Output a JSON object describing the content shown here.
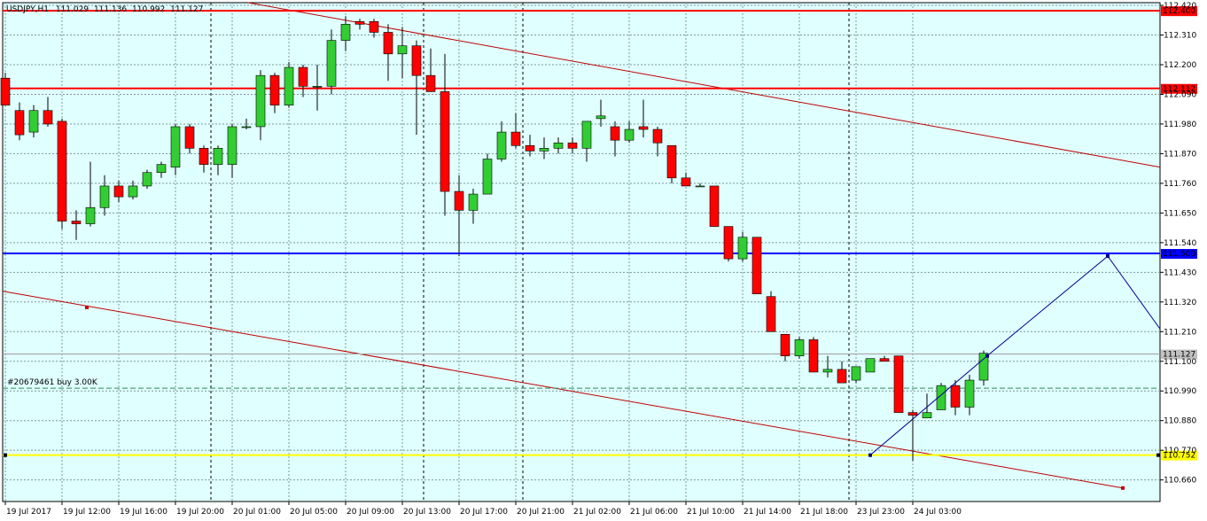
{
  "header": {
    "symbol": "USDJPY,H1",
    "open": "111.029",
    "high": "111.136",
    "low": "110.992",
    "close": "111.127"
  },
  "colors": {
    "background": "#E0FFFF",
    "grid": "#7A9A9A",
    "bull": "#32CD32",
    "bear": "#FF0000",
    "red_line": "#FF0000",
    "blue_line": "#0000FF",
    "yellow_line": "#FFFF00",
    "path_line": "#00008B",
    "trend_line": "#C00000"
  },
  "chart_data": {
    "type": "candlestick",
    "symbol": "USDJPY",
    "timeframe": "H1",
    "ylim": [
      110.58,
      112.43
    ],
    "y_ticks": [
      "112.420",
      "112.310",
      "112.200",
      "112.090",
      "111.980",
      "111.870",
      "111.760",
      "111.650",
      "111.540",
      "111.430",
      "111.320",
      "111.210",
      "111.100",
      "110.990",
      "110.880",
      "110.770",
      "110.660"
    ],
    "x_labels": [
      {
        "index": 0,
        "label": "19 Jul 2017"
      },
      {
        "index": 4,
        "label": "19 Jul 12:00"
      },
      {
        "index": 8,
        "label": "19 Jul 16:00"
      },
      {
        "index": 12,
        "label": "19 Jul 20:00"
      },
      {
        "index": 16,
        "label": "20 Jul 01:00"
      },
      {
        "index": 20,
        "label": "20 Jul 05:00"
      },
      {
        "index": 24,
        "label": "20 Jul 09:00"
      },
      {
        "index": 28,
        "label": "20 Jul 13:00"
      },
      {
        "index": 32,
        "label": "20 Jul 17:00"
      },
      {
        "index": 36,
        "label": "20 Jul 21:00"
      },
      {
        "index": 40,
        "label": "21 Jul 02:00"
      },
      {
        "index": 44,
        "label": "21 Jul 06:00"
      },
      {
        "index": 48,
        "label": "21 Jul 10:00"
      },
      {
        "index": 52,
        "label": "21 Jul 14:00"
      },
      {
        "index": 56,
        "label": "21 Jul 18:00"
      },
      {
        "index": 60,
        "label": "23 Jul 23:00"
      },
      {
        "index": 64,
        "label": "24 Jul 03:00"
      }
    ],
    "candles": [
      {
        "o": 112.15,
        "h": 112.17,
        "l": 112.05,
        "c": 112.05
      },
      {
        "o": 112.03,
        "h": 112.06,
        "l": 111.92,
        "c": 111.94
      },
      {
        "o": 111.95,
        "h": 112.05,
        "l": 111.93,
        "c": 112.03
      },
      {
        "o": 112.03,
        "h": 112.08,
        "l": 111.97,
        "c": 111.98
      },
      {
        "o": 111.99,
        "h": 112.0,
        "l": 111.59,
        "c": 111.62
      },
      {
        "o": 111.62,
        "h": 111.66,
        "l": 111.55,
        "c": 111.61
      },
      {
        "o": 111.61,
        "h": 111.84,
        "l": 111.6,
        "c": 111.67
      },
      {
        "o": 111.67,
        "h": 111.79,
        "l": 111.64,
        "c": 111.75
      },
      {
        "o": 111.75,
        "h": 111.77,
        "l": 111.69,
        "c": 111.71
      },
      {
        "o": 111.71,
        "h": 111.77,
        "l": 111.7,
        "c": 111.75
      },
      {
        "o": 111.75,
        "h": 111.81,
        "l": 111.74,
        "c": 111.8
      },
      {
        "o": 111.8,
        "h": 111.84,
        "l": 111.78,
        "c": 111.83
      },
      {
        "o": 111.82,
        "h": 111.98,
        "l": 111.79,
        "c": 111.97
      },
      {
        "o": 111.97,
        "h": 111.98,
        "l": 111.87,
        "c": 111.89
      },
      {
        "o": 111.89,
        "h": 111.9,
        "l": 111.8,
        "c": 111.83
      },
      {
        "o": 111.83,
        "h": 111.9,
        "l": 111.79,
        "c": 111.89
      },
      {
        "o": 111.83,
        "h": 111.98,
        "l": 111.78,
        "c": 111.97
      },
      {
        "o": 111.97,
        "h": 112.0,
        "l": 111.96,
        "c": 111.97
      },
      {
        "o": 111.97,
        "h": 112.18,
        "l": 111.92,
        "c": 112.16
      },
      {
        "o": 112.16,
        "h": 112.17,
        "l": 112.02,
        "c": 112.05
      },
      {
        "o": 112.05,
        "h": 112.21,
        "l": 112.04,
        "c": 112.19
      },
      {
        "o": 112.19,
        "h": 112.2,
        "l": 112.08,
        "c": 112.12
      },
      {
        "o": 112.12,
        "h": 112.2,
        "l": 112.03,
        "c": 112.12
      },
      {
        "o": 112.12,
        "h": 112.33,
        "l": 112.09,
        "c": 112.29
      },
      {
        "o": 112.29,
        "h": 112.38,
        "l": 112.25,
        "c": 112.35
      },
      {
        "o": 112.36,
        "h": 112.37,
        "l": 112.33,
        "c": 112.35
      },
      {
        "o": 112.36,
        "h": 112.37,
        "l": 112.3,
        "c": 112.32
      },
      {
        "o": 112.32,
        "h": 112.35,
        "l": 112.14,
        "c": 112.24
      },
      {
        "o": 112.24,
        "h": 112.34,
        "l": 112.15,
        "c": 112.27
      },
      {
        "o": 112.27,
        "h": 112.29,
        "l": 111.94,
        "c": 112.16
      },
      {
        "o": 112.16,
        "h": 112.26,
        "l": 112.1,
        "c": 112.1
      },
      {
        "o": 112.1,
        "h": 112.24,
        "l": 111.64,
        "c": 111.73
      },
      {
        "o": 111.73,
        "h": 111.79,
        "l": 111.49,
        "c": 111.66
      },
      {
        "o": 111.66,
        "h": 111.74,
        "l": 111.61,
        "c": 111.72
      },
      {
        "o": 111.72,
        "h": 111.87,
        "l": 111.72,
        "c": 111.85
      },
      {
        "o": 111.85,
        "h": 111.99,
        "l": 111.84,
        "c": 111.95
      },
      {
        "o": 111.95,
        "h": 112.02,
        "l": 111.89,
        "c": 111.9
      },
      {
        "o": 111.9,
        "h": 111.94,
        "l": 111.86,
        "c": 111.88
      },
      {
        "o": 111.88,
        "h": 111.93,
        "l": 111.85,
        "c": 111.89
      },
      {
        "o": 111.89,
        "h": 111.93,
        "l": 111.87,
        "c": 111.91
      },
      {
        "o": 111.91,
        "h": 111.93,
        "l": 111.87,
        "c": 111.89
      },
      {
        "o": 111.89,
        "h": 111.99,
        "l": 111.84,
        "c": 111.99
      },
      {
        "o": 112.0,
        "h": 112.07,
        "l": 111.97,
        "c": 112.01
      },
      {
        "o": 111.97,
        "h": 111.99,
        "l": 111.86,
        "c": 111.92
      },
      {
        "o": 111.92,
        "h": 111.99,
        "l": 111.91,
        "c": 111.96
      },
      {
        "o": 111.97,
        "h": 112.07,
        "l": 111.93,
        "c": 111.96
      },
      {
        "o": 111.96,
        "h": 111.97,
        "l": 111.86,
        "c": 111.91
      },
      {
        "o": 111.9,
        "h": 111.9,
        "l": 111.76,
        "c": 111.78
      },
      {
        "o": 111.78,
        "h": 111.8,
        "l": 111.75,
        "c": 111.75
      },
      {
        "o": 111.75,
        "h": 111.76,
        "l": 111.75,
        "c": 111.75
      },
      {
        "o": 111.75,
        "h": 111.75,
        "l": 111.6,
        "c": 111.6
      },
      {
        "o": 111.6,
        "h": 111.6,
        "l": 111.47,
        "c": 111.48
      },
      {
        "o": 111.48,
        "h": 111.58,
        "l": 111.47,
        "c": 111.56
      },
      {
        "o": 111.56,
        "h": 111.56,
        "l": 111.35,
        "c": 111.35
      },
      {
        "o": 111.34,
        "h": 111.36,
        "l": 111.21,
        "c": 111.21
      },
      {
        "o": 111.2,
        "h": 111.2,
        "l": 111.1,
        "c": 111.12
      },
      {
        "o": 111.12,
        "h": 111.19,
        "l": 111.11,
        "c": 111.18
      },
      {
        "o": 111.18,
        "h": 111.19,
        "l": 111.06,
        "c": 111.06
      },
      {
        "o": 111.06,
        "h": 111.12,
        "l": 111.04,
        "c": 111.07
      },
      {
        "o": 111.07,
        "h": 111.1,
        "l": 111.02,
        "c": 111.02
      },
      {
        "o": 111.03,
        "h": 111.08,
        "l": 111.02,
        "c": 111.08
      },
      {
        "o": 111.06,
        "h": 111.11,
        "l": 111.06,
        "c": 111.11
      },
      {
        "o": 111.11,
        "h": 111.12,
        "l": 111.1,
        "c": 111.1
      },
      {
        "o": 111.12,
        "h": 111.12,
        "l": 110.91,
        "c": 110.91
      },
      {
        "o": 110.91,
        "h": 110.92,
        "l": 110.73,
        "c": 110.9
      },
      {
        "o": 110.89,
        "h": 110.98,
        "l": 110.89,
        "c": 110.91
      },
      {
        "o": 110.92,
        "h": 111.02,
        "l": 110.92,
        "c": 111.01
      },
      {
        "o": 111.01,
        "h": 111.03,
        "l": 110.9,
        "c": 110.93
      },
      {
        "o": 110.93,
        "h": 111.05,
        "l": 110.9,
        "c": 111.03
      },
      {
        "o": 111.03,
        "h": 111.14,
        "l": 111.01,
        "c": 111.13
      }
    ],
    "horizontal_lines": [
      {
        "price": 112.4,
        "label": "112.400",
        "color": "#FF0000"
      },
      {
        "price": 112.112,
        "label": "112.112",
        "color": "#FF0000"
      },
      {
        "price": 111.5,
        "label": "111.500",
        "color": "#0000FF"
      },
      {
        "price": 110.752,
        "label": "110.752",
        "color": "#FFFF00"
      }
    ],
    "order_line": {
      "price": 111.0,
      "label": "#20679461 buy 3.00K"
    },
    "current_price": {
      "price": 111.127,
      "label": "111.127"
    },
    "vertical_separators": [
      15,
      30,
      37,
      60
    ]
  }
}
